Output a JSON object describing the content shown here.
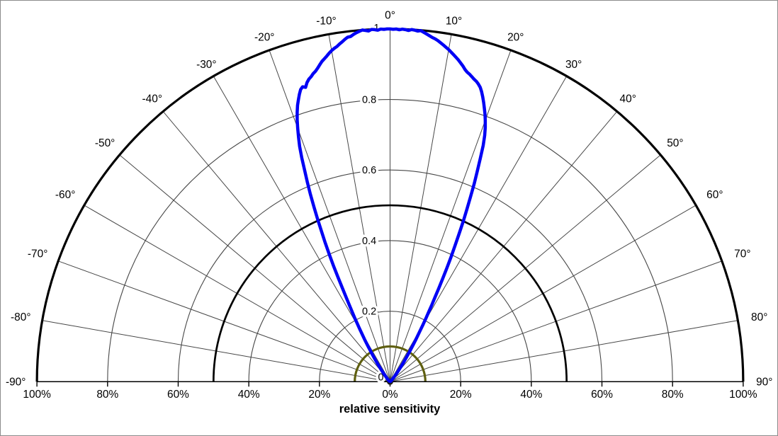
{
  "frame": {
    "background": "#ffffff",
    "border_color": "#8c8c8c"
  },
  "chart_data": {
    "type": "line",
    "subtype": "polar-half",
    "title": "relative sensitivity",
    "xlabel": "relative sensitivity",
    "angular_range_deg": [
      -90,
      90
    ],
    "radial_range": [
      0,
      1
    ],
    "grid": {
      "angular_step_deg": 10,
      "gridline_color": "#474747",
      "major_color": "#000000",
      "thin_circles": [
        0.2,
        0.4,
        0.6,
        0.8
      ],
      "thick_circles": [
        0.5,
        1.0
      ]
    },
    "reference_circle": {
      "radius": 0.1,
      "color": "#5f5f10"
    },
    "angle_labels": [
      {
        "deg": -90,
        "label": "-90°"
      },
      {
        "deg": -80,
        "label": "-80°"
      },
      {
        "deg": -70,
        "label": "-70°"
      },
      {
        "deg": -60,
        "label": "-60°"
      },
      {
        "deg": -50,
        "label": "-50°"
      },
      {
        "deg": -40,
        "label": "-40°"
      },
      {
        "deg": -30,
        "label": "-30°"
      },
      {
        "deg": -20,
        "label": "-20°"
      },
      {
        "deg": -10,
        "label": "-10°"
      },
      {
        "deg": 0,
        "label": "0°"
      },
      {
        "deg": 10,
        "label": "10°"
      },
      {
        "deg": 20,
        "label": "20°"
      },
      {
        "deg": 30,
        "label": "30°"
      },
      {
        "deg": 40,
        "label": "40°"
      },
      {
        "deg": 50,
        "label": "50°"
      },
      {
        "deg": 60,
        "label": "60°"
      },
      {
        "deg": 70,
        "label": "70°"
      },
      {
        "deg": 80,
        "label": "80°"
      },
      {
        "deg": 90,
        "label": "90°"
      }
    ],
    "radial_labels": [
      {
        "r": 0,
        "label": "0"
      },
      {
        "r": 0.2,
        "label": "0.2"
      },
      {
        "r": 0.4,
        "label": "0.4"
      },
      {
        "r": 0.6,
        "label": "0.6"
      },
      {
        "r": 0.8,
        "label": "0.8"
      },
      {
        "r": 1,
        "label": "1"
      }
    ],
    "bottom_axis_labels": [
      "100%",
      "80%",
      "60%",
      "40%",
      "20%",
      "0%",
      "20%",
      "40%",
      "60%",
      "80%",
      "100%"
    ],
    "series": [
      {
        "name": "relative-sensitivity-lobe",
        "color": "#0000f5",
        "width": 4.5,
        "points_deg_r": [
          [
            -54,
            0.002
          ],
          [
            -50,
            0.004
          ],
          [
            -46,
            0.008
          ],
          [
            -43,
            0.013
          ],
          [
            -40,
            0.02
          ],
          [
            -38,
            0.03
          ],
          [
            -36,
            0.048
          ],
          [
            -35,
            0.06
          ],
          [
            -34,
            0.075
          ],
          [
            -33,
            0.092
          ],
          [
            -32,
            0.115
          ],
          [
            -31,
            0.14
          ],
          [
            -30,
            0.17
          ],
          [
            -29,
            0.205
          ],
          [
            -28,
            0.245
          ],
          [
            -27.5,
            0.268
          ],
          [
            -27,
            0.295
          ],
          [
            -26.5,
            0.33
          ],
          [
            -26,
            0.365
          ],
          [
            -25.5,
            0.4
          ],
          [
            -25,
            0.435
          ],
          [
            -24.5,
            0.468
          ],
          [
            -24,
            0.505
          ],
          [
            -23.5,
            0.54
          ],
          [
            -23,
            0.578
          ],
          [
            -22.5,
            0.612
          ],
          [
            -22,
            0.645
          ],
          [
            -21.5,
            0.682
          ],
          [
            -21,
            0.715
          ],
          [
            -20.5,
            0.74
          ],
          [
            -20,
            0.765
          ],
          [
            -19.5,
            0.788
          ],
          [
            -19,
            0.808
          ],
          [
            -18.5,
            0.826
          ],
          [
            -18,
            0.84
          ],
          [
            -17.5,
            0.854
          ],
          [
            -17,
            0.866
          ],
          [
            -16.5,
            0.872
          ],
          [
            -16,
            0.868
          ],
          [
            -15.5,
            0.88
          ],
          [
            -15,
            0.888
          ],
          [
            -14.5,
            0.893
          ],
          [
            -14,
            0.9
          ],
          [
            -13.5,
            0.905
          ],
          [
            -13,
            0.912
          ],
          [
            -12.5,
            0.92
          ],
          [
            -12,
            0.928
          ],
          [
            -11.5,
            0.934
          ],
          [
            -11,
            0.94
          ],
          [
            -10.5,
            0.947
          ],
          [
            -10,
            0.953
          ],
          [
            -9.5,
            0.958
          ],
          [
            -9,
            0.962
          ],
          [
            -8.5,
            0.968
          ],
          [
            -8,
            0.973
          ],
          [
            -7.5,
            0.979
          ],
          [
            -7,
            0.984
          ],
          [
            -6.5,
            0.985
          ],
          [
            -6,
            0.99
          ],
          [
            -5.5,
            0.994
          ],
          [
            -5,
            0.997
          ],
          [
            -4.5,
            1
          ],
          [
            -4,
            0.998
          ],
          [
            -3.5,
            0.996
          ],
          [
            -3,
            1
          ],
          [
            -2.5,
            0.999
          ],
          [
            -2,
            0.997
          ],
          [
            -1.5,
            1
          ],
          [
            -1,
            0.999
          ],
          [
            -0.5,
            1
          ],
          [
            0,
            1
          ],
          [
            0.5,
            0.999
          ],
          [
            1,
            1
          ],
          [
            1.5,
            0.998
          ],
          [
            2,
            1
          ],
          [
            2.5,
            0.999
          ],
          [
            3,
            0.997
          ],
          [
            3.5,
            1
          ],
          [
            4,
            0.999
          ],
          [
            4.5,
            0.997
          ],
          [
            5,
            0.999
          ],
          [
            5.5,
            0.995
          ],
          [
            6,
            0.991
          ],
          [
            6.5,
            0.987
          ],
          [
            7,
            0.983
          ],
          [
            7.5,
            0.98
          ],
          [
            8,
            0.976
          ],
          [
            8.5,
            0.971
          ],
          [
            9,
            0.966
          ],
          [
            9.5,
            0.961
          ],
          [
            10,
            0.956
          ],
          [
            10.5,
            0.95
          ],
          [
            11,
            0.944
          ],
          [
            11.5,
            0.938
          ],
          [
            12,
            0.932
          ],
          [
            12.5,
            0.925
          ],
          [
            13,
            0.918
          ],
          [
            13.5,
            0.91
          ],
          [
            14,
            0.904
          ],
          [
            14.5,
            0.9
          ],
          [
            15,
            0.895
          ],
          [
            15.5,
            0.89
          ],
          [
            16,
            0.886
          ],
          [
            16.5,
            0.88
          ],
          [
            17,
            0.873
          ],
          [
            17.5,
            0.862
          ],
          [
            18,
            0.849
          ],
          [
            18.5,
            0.835
          ],
          [
            19,
            0.82
          ],
          [
            19.5,
            0.805
          ],
          [
            20,
            0.788
          ],
          [
            20.5,
            0.77
          ],
          [
            21,
            0.748
          ],
          [
            21.5,
            0.72
          ],
          [
            22,
            0.682
          ],
          [
            22.5,
            0.645
          ],
          [
            23,
            0.61
          ],
          [
            23.5,
            0.572
          ],
          [
            24,
            0.535
          ],
          [
            24.5,
            0.5
          ],
          [
            25,
            0.463
          ],
          [
            25.5,
            0.428
          ],
          [
            26,
            0.395
          ],
          [
            26.5,
            0.362
          ],
          [
            27,
            0.33
          ],
          [
            27.5,
            0.3
          ],
          [
            28,
            0.272
          ],
          [
            28.5,
            0.248
          ],
          [
            29,
            0.225
          ],
          [
            29.5,
            0.205
          ],
          [
            30,
            0.185
          ],
          [
            30.5,
            0.168
          ],
          [
            31,
            0.152
          ],
          [
            31.5,
            0.138
          ],
          [
            32,
            0.125
          ],
          [
            33,
            0.102
          ],
          [
            34,
            0.082
          ],
          [
            35,
            0.066
          ],
          [
            36,
            0.052
          ],
          [
            37,
            0.042
          ],
          [
            38,
            0.033
          ],
          [
            40,
            0.021
          ],
          [
            42,
            0.014
          ],
          [
            45,
            0.008
          ],
          [
            48,
            0.005
          ],
          [
            52,
            0.002
          ],
          [
            55,
            0.001
          ]
        ]
      }
    ]
  }
}
